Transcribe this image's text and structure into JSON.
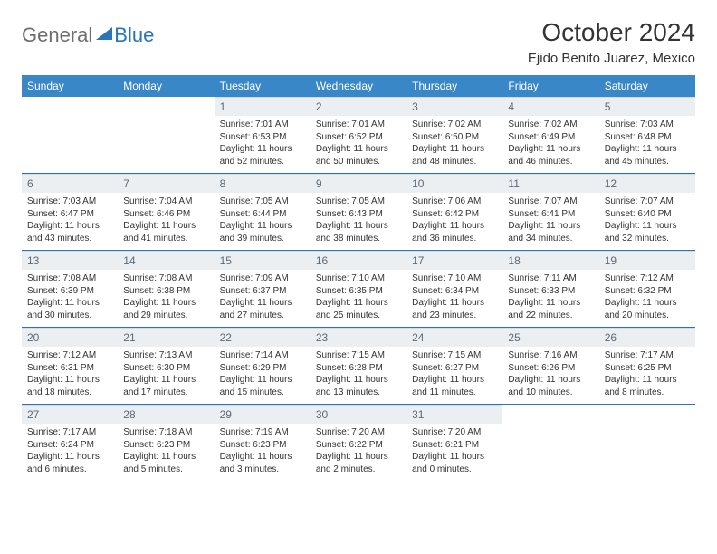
{
  "brand": {
    "part1": "General",
    "part2": "Blue"
  },
  "title": "October 2024",
  "location": "Ejido Benito Juarez, Mexico",
  "colors": {
    "header_bg": "#3a87c8",
    "header_text": "#ffffff",
    "daynum_bg": "#eceff1",
    "daynum_text": "#5a6a78",
    "row_divider": "#2a74b8",
    "body_text": "#333333",
    "brand_gray": "#6e6e6e",
    "brand_blue": "#2a74b8",
    "page_bg": "#ffffff"
  },
  "dayHeaders": [
    "Sunday",
    "Monday",
    "Tuesday",
    "Wednesday",
    "Thursday",
    "Friday",
    "Saturday"
  ],
  "weeks": [
    [
      {
        "empty": true
      },
      {
        "empty": true
      },
      {
        "num": "1",
        "sunrise": "Sunrise: 7:01 AM",
        "sunset": "Sunset: 6:53 PM",
        "daylight": "Daylight: 11 hours and 52 minutes."
      },
      {
        "num": "2",
        "sunrise": "Sunrise: 7:01 AM",
        "sunset": "Sunset: 6:52 PM",
        "daylight": "Daylight: 11 hours and 50 minutes."
      },
      {
        "num": "3",
        "sunrise": "Sunrise: 7:02 AM",
        "sunset": "Sunset: 6:50 PM",
        "daylight": "Daylight: 11 hours and 48 minutes."
      },
      {
        "num": "4",
        "sunrise": "Sunrise: 7:02 AM",
        "sunset": "Sunset: 6:49 PM",
        "daylight": "Daylight: 11 hours and 46 minutes."
      },
      {
        "num": "5",
        "sunrise": "Sunrise: 7:03 AM",
        "sunset": "Sunset: 6:48 PM",
        "daylight": "Daylight: 11 hours and 45 minutes."
      }
    ],
    [
      {
        "num": "6",
        "sunrise": "Sunrise: 7:03 AM",
        "sunset": "Sunset: 6:47 PM",
        "daylight": "Daylight: 11 hours and 43 minutes."
      },
      {
        "num": "7",
        "sunrise": "Sunrise: 7:04 AM",
        "sunset": "Sunset: 6:46 PM",
        "daylight": "Daylight: 11 hours and 41 minutes."
      },
      {
        "num": "8",
        "sunrise": "Sunrise: 7:05 AM",
        "sunset": "Sunset: 6:44 PM",
        "daylight": "Daylight: 11 hours and 39 minutes."
      },
      {
        "num": "9",
        "sunrise": "Sunrise: 7:05 AM",
        "sunset": "Sunset: 6:43 PM",
        "daylight": "Daylight: 11 hours and 38 minutes."
      },
      {
        "num": "10",
        "sunrise": "Sunrise: 7:06 AM",
        "sunset": "Sunset: 6:42 PM",
        "daylight": "Daylight: 11 hours and 36 minutes."
      },
      {
        "num": "11",
        "sunrise": "Sunrise: 7:07 AM",
        "sunset": "Sunset: 6:41 PM",
        "daylight": "Daylight: 11 hours and 34 minutes."
      },
      {
        "num": "12",
        "sunrise": "Sunrise: 7:07 AM",
        "sunset": "Sunset: 6:40 PM",
        "daylight": "Daylight: 11 hours and 32 minutes."
      }
    ],
    [
      {
        "num": "13",
        "sunrise": "Sunrise: 7:08 AM",
        "sunset": "Sunset: 6:39 PM",
        "daylight": "Daylight: 11 hours and 30 minutes."
      },
      {
        "num": "14",
        "sunrise": "Sunrise: 7:08 AM",
        "sunset": "Sunset: 6:38 PM",
        "daylight": "Daylight: 11 hours and 29 minutes."
      },
      {
        "num": "15",
        "sunrise": "Sunrise: 7:09 AM",
        "sunset": "Sunset: 6:37 PM",
        "daylight": "Daylight: 11 hours and 27 minutes."
      },
      {
        "num": "16",
        "sunrise": "Sunrise: 7:10 AM",
        "sunset": "Sunset: 6:35 PM",
        "daylight": "Daylight: 11 hours and 25 minutes."
      },
      {
        "num": "17",
        "sunrise": "Sunrise: 7:10 AM",
        "sunset": "Sunset: 6:34 PM",
        "daylight": "Daylight: 11 hours and 23 minutes."
      },
      {
        "num": "18",
        "sunrise": "Sunrise: 7:11 AM",
        "sunset": "Sunset: 6:33 PM",
        "daylight": "Daylight: 11 hours and 22 minutes."
      },
      {
        "num": "19",
        "sunrise": "Sunrise: 7:12 AM",
        "sunset": "Sunset: 6:32 PM",
        "daylight": "Daylight: 11 hours and 20 minutes."
      }
    ],
    [
      {
        "num": "20",
        "sunrise": "Sunrise: 7:12 AM",
        "sunset": "Sunset: 6:31 PM",
        "daylight": "Daylight: 11 hours and 18 minutes."
      },
      {
        "num": "21",
        "sunrise": "Sunrise: 7:13 AM",
        "sunset": "Sunset: 6:30 PM",
        "daylight": "Daylight: 11 hours and 17 minutes."
      },
      {
        "num": "22",
        "sunrise": "Sunrise: 7:14 AM",
        "sunset": "Sunset: 6:29 PM",
        "daylight": "Daylight: 11 hours and 15 minutes."
      },
      {
        "num": "23",
        "sunrise": "Sunrise: 7:15 AM",
        "sunset": "Sunset: 6:28 PM",
        "daylight": "Daylight: 11 hours and 13 minutes."
      },
      {
        "num": "24",
        "sunrise": "Sunrise: 7:15 AM",
        "sunset": "Sunset: 6:27 PM",
        "daylight": "Daylight: 11 hours and 11 minutes."
      },
      {
        "num": "25",
        "sunrise": "Sunrise: 7:16 AM",
        "sunset": "Sunset: 6:26 PM",
        "daylight": "Daylight: 11 hours and 10 minutes."
      },
      {
        "num": "26",
        "sunrise": "Sunrise: 7:17 AM",
        "sunset": "Sunset: 6:25 PM",
        "daylight": "Daylight: 11 hours and 8 minutes."
      }
    ],
    [
      {
        "num": "27",
        "sunrise": "Sunrise: 7:17 AM",
        "sunset": "Sunset: 6:24 PM",
        "daylight": "Daylight: 11 hours and 6 minutes."
      },
      {
        "num": "28",
        "sunrise": "Sunrise: 7:18 AM",
        "sunset": "Sunset: 6:23 PM",
        "daylight": "Daylight: 11 hours and 5 minutes."
      },
      {
        "num": "29",
        "sunrise": "Sunrise: 7:19 AM",
        "sunset": "Sunset: 6:23 PM",
        "daylight": "Daylight: 11 hours and 3 minutes."
      },
      {
        "num": "30",
        "sunrise": "Sunrise: 7:20 AM",
        "sunset": "Sunset: 6:22 PM",
        "daylight": "Daylight: 11 hours and 2 minutes."
      },
      {
        "num": "31",
        "sunrise": "Sunrise: 7:20 AM",
        "sunset": "Sunset: 6:21 PM",
        "daylight": "Daylight: 11 hours and 0 minutes."
      },
      {
        "empty": true
      },
      {
        "empty": true
      }
    ]
  ]
}
